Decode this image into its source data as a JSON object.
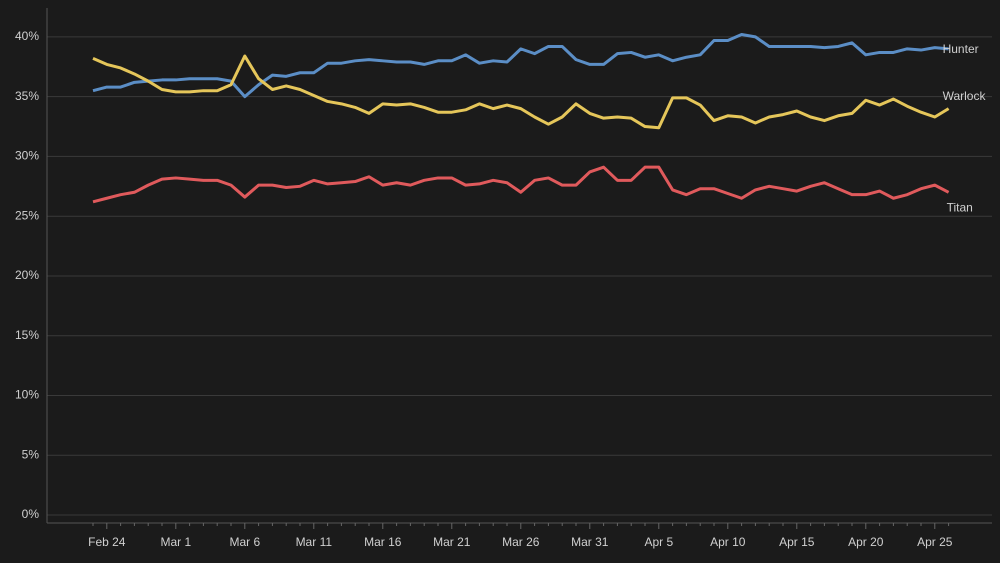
{
  "chart_data": {
    "type": "line",
    "categories": [
      null,
      "Feb 24",
      null,
      null,
      null,
      null,
      "Mar 1",
      null,
      null,
      null,
      null,
      "Mar 6",
      null,
      null,
      null,
      null,
      "Mar 11",
      null,
      null,
      null,
      null,
      "Mar 16",
      null,
      null,
      null,
      null,
      "Mar 21",
      null,
      null,
      null,
      null,
      "Mar 26",
      null,
      null,
      null,
      null,
      "Mar 31",
      null,
      null,
      null,
      null,
      "Apr 5",
      null,
      null,
      null,
      null,
      "Apr 10",
      null,
      null,
      null,
      null,
      "Apr 15",
      null,
      null,
      null,
      null,
      "Apr 20",
      null,
      null,
      null,
      null,
      "Apr 25",
      null
    ],
    "series": [
      {
        "name": "Hunter",
        "color": "#5b8ec6",
        "values": [
          35.5,
          35.8,
          35.8,
          36.2,
          36.3,
          36.4,
          36.4,
          36.5,
          36.5,
          36.5,
          36.3,
          35,
          36,
          36.8,
          36.7,
          37,
          37,
          37.8,
          37.8,
          38,
          38.1,
          38,
          37.9,
          37.9,
          37.7,
          38,
          38,
          38.5,
          37.8,
          38,
          37.9,
          39,
          38.6,
          39.2,
          39.2,
          38.1,
          37.7,
          37.7,
          38.6,
          38.7,
          38.3,
          38.5,
          38,
          38.3,
          38.5,
          39.7,
          39.7,
          40.2,
          40,
          39.2,
          39.2,
          39.2,
          39.2,
          39.1,
          39.2,
          39.5,
          38.5,
          38.7,
          38.7,
          39,
          38.9,
          39.1,
          39
        ]
      },
      {
        "name": "Warlock",
        "color": "#e5c65a",
        "values": [
          38.2,
          37.7,
          37.4,
          36.9,
          36.3,
          35.6,
          35.4,
          35.4,
          35.5,
          35.5,
          36,
          38.4,
          36.5,
          35.6,
          35.9,
          35.6,
          35.1,
          34.6,
          34.4,
          34.1,
          33.6,
          34.4,
          34.3,
          34.4,
          34.1,
          33.7,
          33.7,
          33.9,
          34.4,
          34,
          34.3,
          34,
          33.3,
          32.7,
          33.3,
          34.4,
          33.6,
          33.2,
          33.3,
          33.2,
          32.5,
          32.4,
          34.9,
          34.9,
          34.3,
          33,
          33.4,
          33.3,
          32.8,
          33.3,
          33.5,
          33.8,
          33.3,
          33,
          33.4,
          33.6,
          34.7,
          34.3,
          34.8,
          34.2,
          33.7,
          33.3,
          34
        ]
      },
      {
        "name": "Titan",
        "color": "#e05a5c",
        "values": [
          26.2,
          26.5,
          26.8,
          27,
          27.6,
          28.1,
          28.2,
          28.1,
          28,
          28,
          27.6,
          26.6,
          27.6,
          27.6,
          27.4,
          27.5,
          28,
          27.7,
          27.8,
          27.9,
          28.3,
          27.6,
          27.8,
          27.6,
          28,
          28.2,
          28.2,
          27.6,
          27.7,
          28,
          27.8,
          27,
          28,
          28.2,
          27.6,
          27.6,
          28.7,
          29.1,
          28,
          28,
          29.1,
          29.1,
          27.2,
          26.8,
          27.3,
          27.3,
          26.9,
          26.5,
          27.2,
          27.5,
          27.3,
          27.1,
          27.5,
          27.8,
          27.3,
          26.8,
          26.8,
          27.1,
          26.5,
          26.8,
          27.3,
          27.6,
          27
        ]
      }
    ],
    "ylim": [
      0,
      42
    ],
    "yticks": [
      {
        "value": 0,
        "label": "0%"
      },
      {
        "value": 5,
        "label": "5%"
      },
      {
        "value": 10,
        "label": "10%"
      },
      {
        "value": 15,
        "label": "15%"
      },
      {
        "value": 20,
        "label": "20%"
      },
      {
        "value": 25,
        "label": "25%"
      },
      {
        "value": 30,
        "label": "30%"
      },
      {
        "value": 35,
        "label": "35%"
      },
      {
        "value": 40,
        "label": "40%"
      }
    ],
    "grid": true
  }
}
